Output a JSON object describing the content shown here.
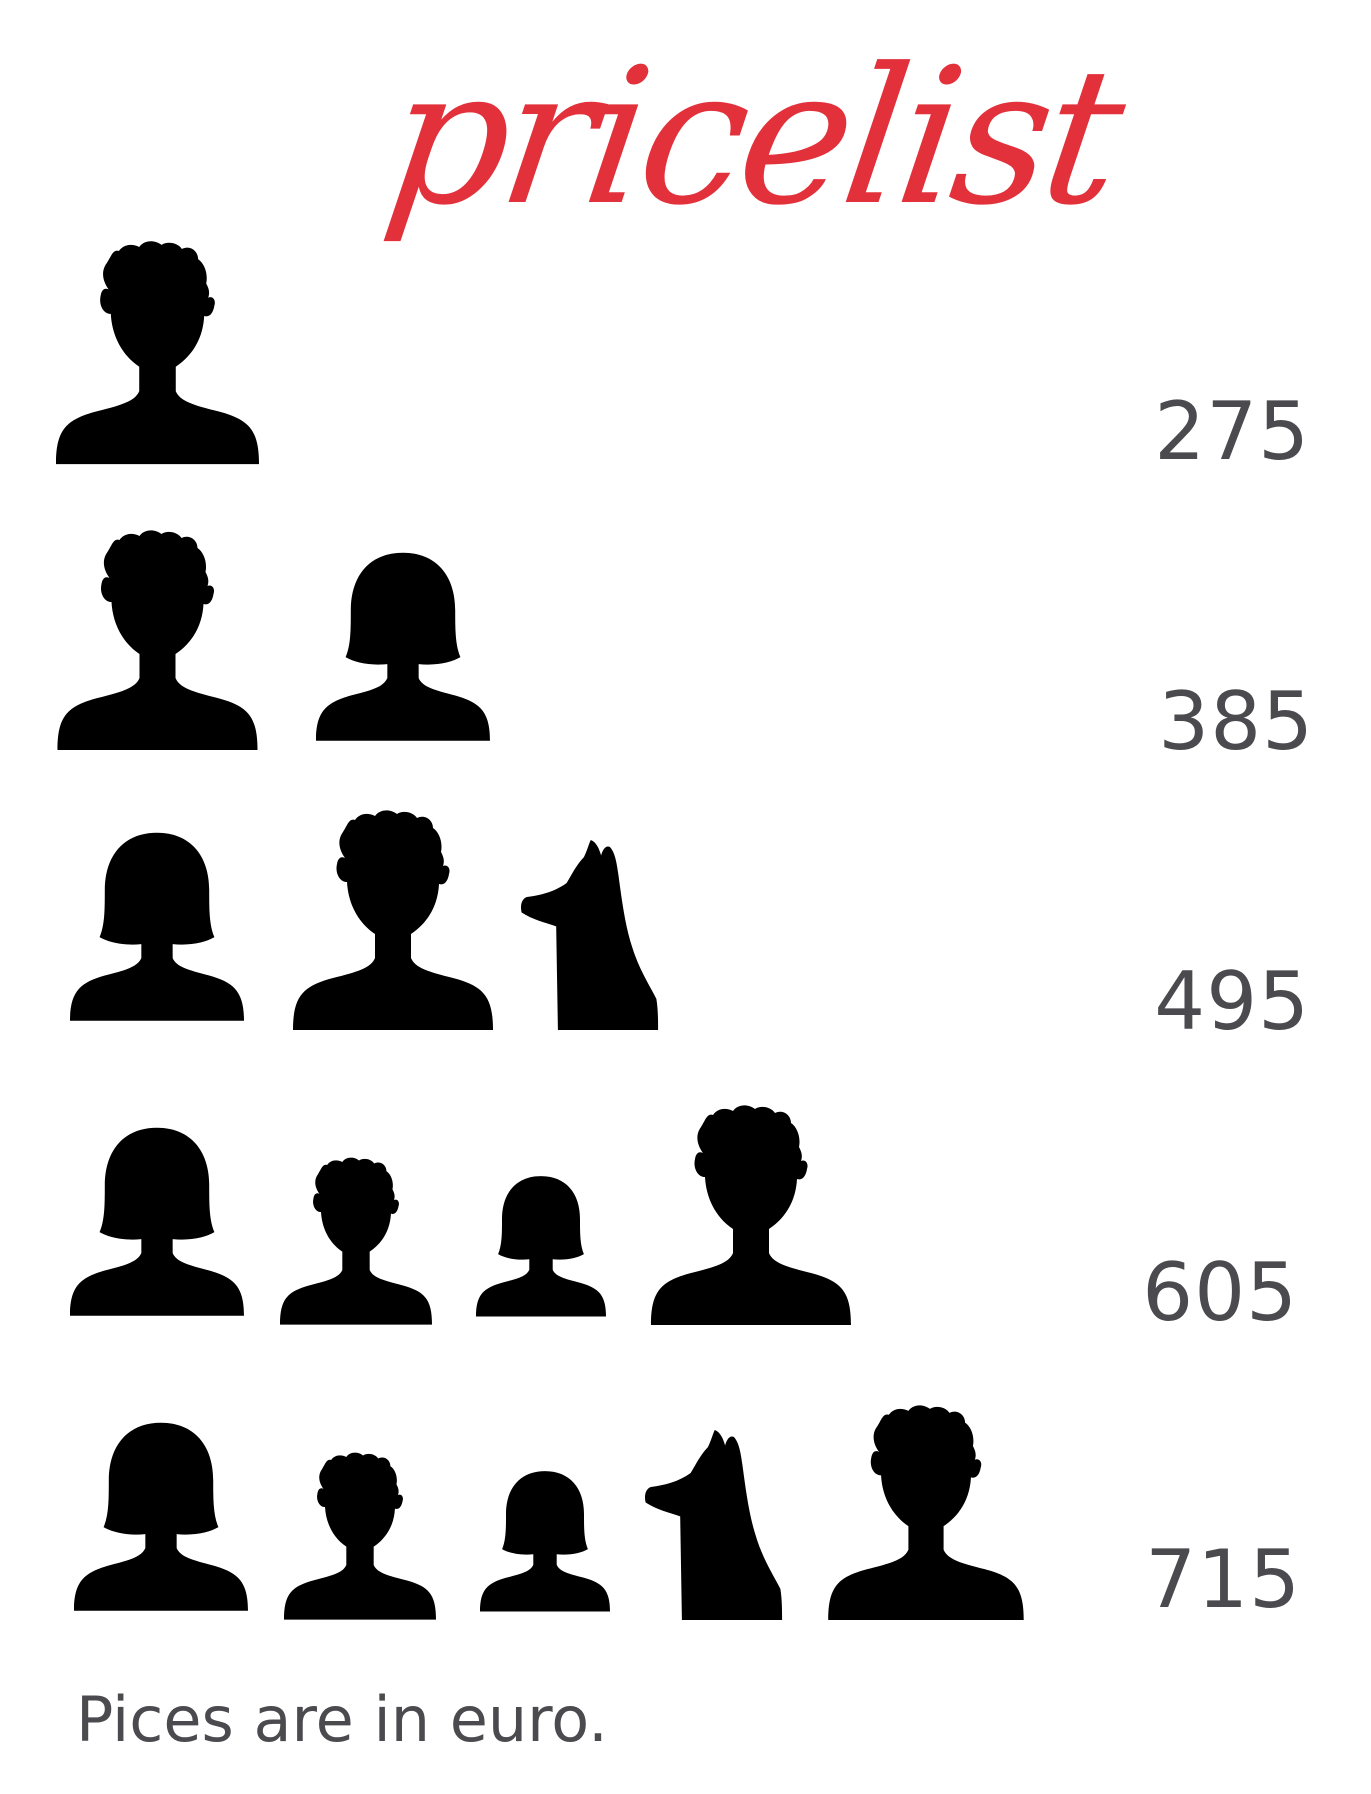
{
  "title": "pricelist",
  "colors": {
    "title": "#e2313b",
    "price_text": "#4b4b4f",
    "silhouette": "#000000",
    "background": "#ffffff"
  },
  "packages": [
    {
      "price": "275",
      "members": [
        "man-icon"
      ]
    },
    {
      "price": "385",
      "members": [
        "man-icon",
        "woman-icon"
      ]
    },
    {
      "price": "495",
      "members": [
        "woman-icon",
        "man-icon",
        "dog-icon"
      ]
    },
    {
      "price": "605",
      "members": [
        "woman-icon",
        "boy-icon",
        "girl-icon",
        "man-icon"
      ]
    },
    {
      "price": "715",
      "members": [
        "woman-icon",
        "boy-icon",
        "girl-icon",
        "dog-icon",
        "man-icon"
      ]
    }
  ],
  "footer_note": "Pices are in euro."
}
